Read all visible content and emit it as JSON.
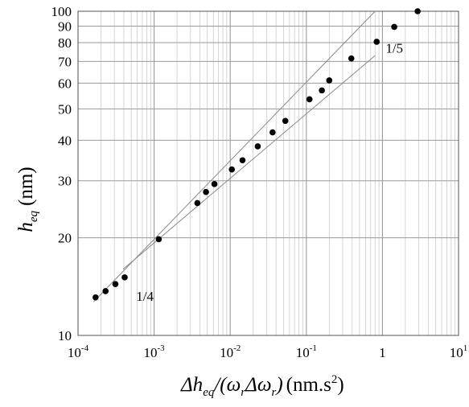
{
  "chart_data": {
    "type": "scatter",
    "xscale": "log",
    "yscale": "log",
    "xlim": [
      0.0001,
      10
    ],
    "ylim": [
      10,
      100
    ],
    "grid": true,
    "x_ticks": [
      {
        "value": 0.0001,
        "base": "10",
        "exp": "-4"
      },
      {
        "value": 0.001,
        "base": "10",
        "exp": "-3"
      },
      {
        "value": 0.01,
        "base": "10",
        "exp": "-2"
      },
      {
        "value": 0.1,
        "base": "10",
        "exp": "-1"
      },
      {
        "value": 1,
        "base": "1",
        "exp": ""
      },
      {
        "value": 10,
        "base": "10",
        "exp": "1"
      }
    ],
    "y_ticks": [
      {
        "value": 10,
        "label": "10"
      },
      {
        "value": 20,
        "label": "20"
      },
      {
        "value": 30,
        "label": "30"
      },
      {
        "value": 40,
        "label": "40"
      },
      {
        "value": 50,
        "label": "50"
      },
      {
        "value": 60,
        "label": "60"
      },
      {
        "value": 70,
        "label": "70"
      },
      {
        "value": 80,
        "label": "80"
      },
      {
        "value": 90,
        "label": "90"
      },
      {
        "value": 100,
        "label": "100"
      }
    ],
    "ylabel": {
      "main": "h",
      "sub": "eq",
      "unit": "(nm)"
    },
    "xlabel": {
      "delta": "Δh",
      "sub_eq": "eq",
      "slash": "/(ω",
      "sub_r1": "r",
      "mid": "Δω",
      "sub_r2": "r",
      "close": ")",
      "unit": "(nm.s",
      "unit_exp": "2",
      "unit_close": ")"
    },
    "points": [
      {
        "x": 0.00017,
        "y": 13.1
      },
      {
        "x": 0.00023,
        "y": 13.7
      },
      {
        "x": 0.00031,
        "y": 14.4
      },
      {
        "x": 0.00041,
        "y": 15.1
      },
      {
        "x": 0.00115,
        "y": 19.8
      },
      {
        "x": 0.0037,
        "y": 25.6
      },
      {
        "x": 0.0048,
        "y": 27.7
      },
      {
        "x": 0.0062,
        "y": 29.3
      },
      {
        "x": 0.0105,
        "y": 32.5
      },
      {
        "x": 0.0145,
        "y": 34.7
      },
      {
        "x": 0.023,
        "y": 38.3
      },
      {
        "x": 0.036,
        "y": 42.3
      },
      {
        "x": 0.053,
        "y": 45.9
      },
      {
        "x": 0.11,
        "y": 53.5
      },
      {
        "x": 0.16,
        "y": 57.0
      },
      {
        "x": 0.2,
        "y": 61.2
      },
      {
        "x": 0.39,
        "y": 71.5
      },
      {
        "x": 0.84,
        "y": 80.5
      },
      {
        "x": 1.43,
        "y": 89.5
      },
      {
        "x": 2.9,
        "y": 100
      }
    ],
    "fit_lines": [
      {
        "slope_label": "1/4",
        "from": [
          0.00016,
          12.7
        ],
        "to": [
          0.8,
          100
        ]
      },
      {
        "slope_label": "1/5",
        "from": [
          0.00039,
          16.0
        ],
        "to": [
          0.8,
          73.0
        ]
      }
    ],
    "annotations": [
      {
        "text": "1/4",
        "x": 0.00058,
        "y": 12.8
      },
      {
        "text": "1/5",
        "x": 1.1,
        "y": 74.5
      }
    ]
  }
}
